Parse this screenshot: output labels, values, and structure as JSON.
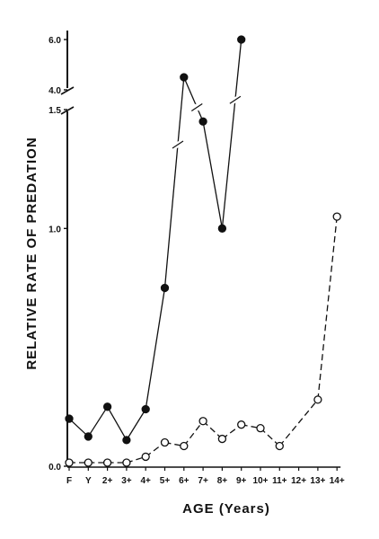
{
  "chart_data": {
    "type": "line",
    "xlabel": "AGE (Years)",
    "ylabel": "RELATIVE RATE OF PREDATION",
    "categories": [
      "F",
      "Y",
      "2+",
      "3+",
      "4+",
      "5+",
      "6+",
      "7+",
      "8+",
      "9+",
      "10+",
      "11+",
      "12+",
      "13+",
      "14+"
    ],
    "y_ticks_lower": [
      "0.0",
      "1.0",
      "1.5"
    ],
    "y_ticks_upper": [
      "4.0",
      "6.0"
    ],
    "y_axis_break": [
      1.5,
      4.0
    ],
    "ylim_lower": [
      0,
      1.5
    ],
    "ylim_upper": [
      4.0,
      6.0
    ],
    "series": [
      {
        "marker": "filled-circle",
        "line_style": "solid",
        "color": "#111111",
        "values": [
          0.2,
          0.125,
          0.25,
          0.11,
          0.24,
          0.75,
          4.5,
          1.45,
          1.0,
          6.0,
          null,
          null,
          null,
          null,
          null
        ]
      },
      {
        "marker": "open-circle",
        "line_style": "dashed",
        "color": "#111111",
        "values": [
          0.015,
          0.015,
          0.015,
          0.015,
          0.04,
          0.1,
          0.085,
          0.19,
          0.115,
          0.175,
          0.16,
          0.085,
          null,
          0.28,
          1.05
        ]
      }
    ],
    "legend": "none",
    "grid": false
  }
}
